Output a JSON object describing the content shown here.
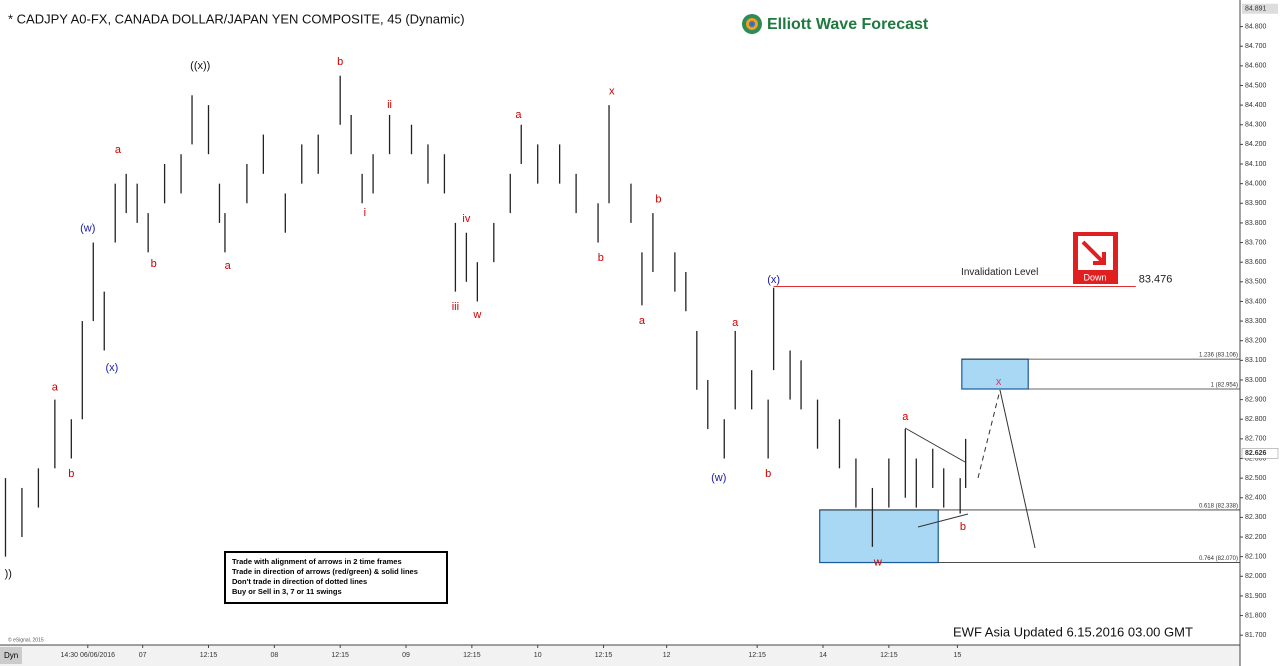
{
  "chart_data": {
    "type": "hilo",
    "title": "* CADJPY A0-FX, CANADA DOLLAR/JAPAN YEN COMPOSITE, 45 (Dynamic)",
    "brand": "Elliott Wave Forecast",
    "footer": "EWF Asia Updated 6.15.2016 03.00 GMT",
    "copyright": "© eSignal, 2015",
    "mode_label": "Dyn",
    "color": "#222222",
    "x": [
      1,
      4,
      7,
      10,
      13,
      15,
      17,
      19,
      21,
      23,
      25,
      27,
      30,
      33,
      35,
      38,
      40,
      41,
      45,
      48,
      52,
      55,
      58,
      62,
      64,
      66,
      68,
      71,
      75,
      78,
      81,
      83,
      85,
      87,
      90,
      93,
      95,
      98,
      102,
      105,
      109,
      111,
      115,
      117,
      119,
      123,
      125,
      127,
      129,
      132,
      134,
      137,
      140,
      141,
      144,
      146,
      149,
      153,
      156,
      159,
      162,
      165,
      167,
      170,
      172,
      175,
      176
    ],
    "high": [
      82.5,
      82.45,
      82.55,
      82.9,
      82.8,
      83.3,
      83.7,
      83.45,
      84.0,
      84.05,
      84.0,
      83.85,
      84.1,
      84.15,
      84.45,
      84.4,
      84.0,
      83.85,
      84.1,
      84.25,
      83.95,
      84.2,
      84.25,
      84.55,
      84.35,
      84.05,
      84.15,
      84.35,
      84.3,
      84.2,
      84.15,
      83.8,
      83.75,
      83.6,
      83.8,
      84.05,
      84.3,
      84.2,
      84.2,
      84.05,
      83.9,
      84.4,
      84.0,
      83.65,
      83.85,
      83.65,
      83.55,
      83.25,
      83.0,
      82.8,
      83.25,
      83.05,
      82.9,
      83.47,
      83.15,
      83.1,
      82.9,
      82.8,
      82.6,
      82.45,
      82.6,
      82.75,
      82.6,
      82.65,
      82.55,
      82.5,
      82.7
    ],
    "low": [
      82.1,
      82.2,
      82.35,
      82.55,
      82.6,
      82.8,
      83.3,
      83.15,
      83.7,
      83.85,
      83.8,
      83.65,
      83.9,
      83.95,
      84.2,
      84.15,
      83.8,
      83.65,
      83.9,
      84.05,
      83.75,
      84.0,
      84.05,
      84.3,
      84.15,
      83.9,
      83.95,
      84.15,
      84.15,
      84.0,
      83.95,
      83.45,
      83.5,
      83.4,
      83.6,
      83.85,
      84.1,
      84.0,
      84.0,
      83.85,
      83.7,
      83.9,
      83.8,
      83.38,
      83.55,
      83.45,
      83.35,
      82.95,
      82.75,
      82.6,
      82.85,
      82.85,
      82.6,
      83.05,
      82.9,
      82.85,
      82.65,
      82.55,
      82.35,
      82.15,
      82.35,
      82.4,
      82.35,
      82.45,
      82.35,
      82.32,
      82.45
    ],
    "xlim": [
      0,
      226
    ],
    "xticks": [
      {
        "value": 16,
        "label": "14:30 06/06/2016"
      },
      {
        "value": 26,
        "label": "07"
      },
      {
        "value": 38,
        "label": "12:15"
      },
      {
        "value": 50,
        "label": "08"
      },
      {
        "value": 62,
        "label": "12:15"
      },
      {
        "value": 74,
        "label": "09"
      },
      {
        "value": 86,
        "label": "12:15"
      },
      {
        "value": 98,
        "label": "10"
      },
      {
        "value": 110,
        "label": "12:15"
      },
      {
        "value": 121.5,
        "label": "12"
      },
      {
        "value": 138,
        "label": "12:15"
      },
      {
        "value": 150,
        "label": "14"
      },
      {
        "value": 162,
        "label": "12:15"
      },
      {
        "value": 174.5,
        "label": "15"
      }
    ],
    "ylim": [
      81.65,
      84.91
    ],
    "yticks": [
      {
        "value": 81.7,
        "label": "81.700"
      },
      {
        "value": 81.8,
        "label": "81.800"
      },
      {
        "value": 81.9,
        "label": "81.900"
      },
      {
        "value": 82.0,
        "label": "82.000"
      },
      {
        "value": 82.1,
        "label": "82.100"
      },
      {
        "value": 82.2,
        "label": "82.200"
      },
      {
        "value": 82.3,
        "label": "82.300"
      },
      {
        "value": 82.4,
        "label": "82.400"
      },
      {
        "value": 82.5,
        "label": "82.500"
      },
      {
        "value": 82.6,
        "label": "82.600"
      },
      {
        "value": 82.7,
        "label": "82.700"
      },
      {
        "value": 82.8,
        "label": "82.800"
      },
      {
        "value": 82.9,
        "label": "82.900"
      },
      {
        "value": 83.0,
        "label": "83.000"
      },
      {
        "value": 83.1,
        "label": "83.100"
      },
      {
        "value": 83.2,
        "label": "83.200"
      },
      {
        "value": 83.3,
        "label": "83.300"
      },
      {
        "value": 83.4,
        "label": "83.400"
      },
      {
        "value": 83.5,
        "label": "83.500"
      },
      {
        "value": 83.6,
        "label": "83.600"
      },
      {
        "value": 83.7,
        "label": "83.700"
      },
      {
        "value": 83.8,
        "label": "83.800"
      },
      {
        "value": 83.9,
        "label": "83.900"
      },
      {
        "value": 84.0,
        "label": "84.000"
      },
      {
        "value": 84.1,
        "label": "84.100"
      },
      {
        "value": 84.2,
        "label": "84.200"
      },
      {
        "value": 84.3,
        "label": "84.300"
      },
      {
        "value": 84.4,
        "label": "84.400"
      },
      {
        "value": 84.5,
        "label": "84.500"
      },
      {
        "value": 84.6,
        "label": "84.600"
      },
      {
        "value": 84.7,
        "label": "84.700"
      },
      {
        "value": 84.8,
        "label": "84.800"
      }
    ],
    "axis_high": 84.891,
    "last_price": 82.626,
    "annotations": [
      {
        "text": "))",
        "x": 1.5,
        "y": 82.01,
        "color": "#111111"
      },
      {
        "text": "a",
        "x": 10,
        "y": 82.96,
        "color": "#cc0000"
      },
      {
        "text": "b",
        "x": 13,
        "y": 82.52,
        "color": "#cc0000"
      },
      {
        "text": "(w)",
        "x": 16,
        "y": 83.77,
        "color": "#1a1aaa"
      },
      {
        "text": "(x)",
        "x": 20.4,
        "y": 83.06,
        "color": "#1a1aaa"
      },
      {
        "text": "a",
        "x": 21.5,
        "y": 84.17,
        "color": "#cc0000"
      },
      {
        "text": "b",
        "x": 28,
        "y": 83.59,
        "color": "#cc0000"
      },
      {
        "text": "((x))",
        "x": 36.5,
        "y": 84.6,
        "color": "#111111"
      },
      {
        "text": "a",
        "x": 41.5,
        "y": 83.58,
        "color": "#cc0000"
      },
      {
        "text": "b",
        "x": 62,
        "y": 84.62,
        "color": "#cc0000"
      },
      {
        "text": "i",
        "x": 66.5,
        "y": 83.85,
        "color": "#cc0000"
      },
      {
        "text": "ii",
        "x": 71,
        "y": 84.4,
        "color": "#cc0000"
      },
      {
        "text": "iii",
        "x": 83,
        "y": 83.37,
        "color": "#cc0000"
      },
      {
        "text": "iv",
        "x": 85,
        "y": 83.82,
        "color": "#cc0000"
      },
      {
        "text": "w",
        "x": 87,
        "y": 83.33,
        "color": "#cc0000"
      },
      {
        "text": "a",
        "x": 94.5,
        "y": 84.35,
        "color": "#cc0000"
      },
      {
        "text": "b",
        "x": 109.5,
        "y": 83.62,
        "color": "#cc0000"
      },
      {
        "text": "x",
        "x": 111.5,
        "y": 84.47,
        "color": "#cc0000"
      },
      {
        "text": "a",
        "x": 117,
        "y": 83.3,
        "color": "#cc0000"
      },
      {
        "text": "b",
        "x": 120,
        "y": 83.92,
        "color": "#cc0000"
      },
      {
        "text": "(w)",
        "x": 131,
        "y": 82.5,
        "color": "#1a1aaa"
      },
      {
        "text": "a",
        "x": 134,
        "y": 83.29,
        "color": "#cc0000"
      },
      {
        "text": "b",
        "x": 140,
        "y": 82.52,
        "color": "#cc0000"
      },
      {
        "text": "(x)",
        "x": 141,
        "y": 83.51,
        "color": "#1a1aaa"
      },
      {
        "text": "w",
        "x": 160,
        "y": 82.07,
        "color": "#cc0000"
      },
      {
        "text": "a",
        "x": 165,
        "y": 82.81,
        "color": "#cc0000"
      },
      {
        "text": "b",
        "x": 175.5,
        "y": 82.25,
        "color": "#cc0000"
      },
      {
        "text": "x",
        "x": 182,
        "y": 82.99,
        "color": "#dd3366"
      }
    ],
    "invalidation": {
      "label": "Invalidation Level",
      "value": 83.476,
      "from": 141,
      "to": 207,
      "color": "#e03030"
    },
    "down_icon": "Down",
    "fib_levels": [
      {
        "label": "1.236 (83.106)",
        "value": 83.106,
        "from": 175.3
      },
      {
        "label": "1 (82.954)",
        "value": 82.954,
        "from": 187.4
      },
      {
        "label": "0.618 (82.338)",
        "value": 82.338,
        "from": 149.4
      },
      {
        "label": "0.764 (82.070)",
        "value": 82.07,
        "from": 171
      }
    ],
    "zones": [
      {
        "top": 83.106,
        "bottom": 82.954,
        "from": 175.3,
        "to": 187.4,
        "color": "#a9d8f5"
      },
      {
        "top": 82.338,
        "bottom": 82.07,
        "from": 149.4,
        "to": 171,
        "color": "#a9d8f5"
      }
    ],
    "rules": [
      "Trade with alignment of arrows in 2 time frames",
      "Trade in direction of arrows (red/green) & solid lines",
      "Don't trade in direction of dotted lines",
      "Buy or Sell in 3, 7 or 11 swings"
    ]
  }
}
